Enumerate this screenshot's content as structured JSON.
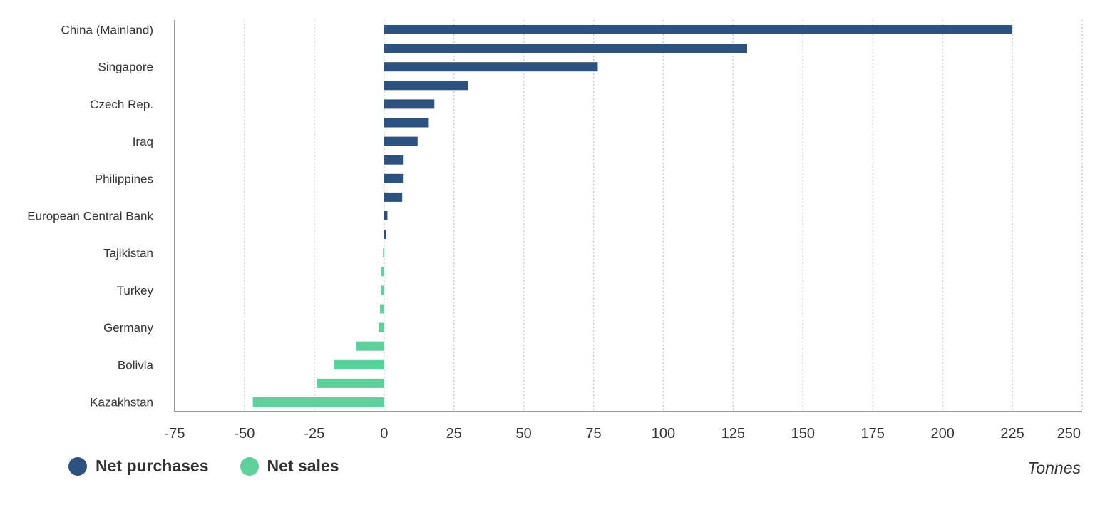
{
  "chart_data": {
    "type": "bar",
    "orientation": "horizontal",
    "unit_label": "Tonnes",
    "xlim": [
      -75,
      250
    ],
    "x_ticks": [
      -75,
      -50,
      -25,
      0,
      25,
      50,
      75,
      100,
      125,
      150,
      175,
      200,
      225,
      250
    ],
    "grid": "vertical dotted",
    "legend_placement": "bottom-left",
    "series": [
      {
        "name": "Net purchases",
        "color": "#2e527f"
      },
      {
        "name": "Net sales",
        "color": "#5fd09b"
      }
    ],
    "categories": [
      {
        "label": "China (Mainland)",
        "value": 225
      },
      {
        "label": "",
        "value": 130
      },
      {
        "label": "Singapore",
        "value": 76.5
      },
      {
        "label": "",
        "value": 30
      },
      {
        "label": "Czech Rep.",
        "value": 18
      },
      {
        "label": "",
        "value": 16
      },
      {
        "label": "Iraq",
        "value": 12
      },
      {
        "label": "",
        "value": 7
      },
      {
        "label": "Philippines",
        "value": 7
      },
      {
        "label": "",
        "value": 6.5
      },
      {
        "label": "European Central Bank",
        "value": 1.2
      },
      {
        "label": "",
        "value": 0.6
      },
      {
        "label": "Tajikistan",
        "value": -0.4
      },
      {
        "label": "",
        "value": -1
      },
      {
        "label": "Turkey",
        "value": -1
      },
      {
        "label": "",
        "value": -1.5
      },
      {
        "label": "Germany",
        "value": -2
      },
      {
        "label": "",
        "value": -10
      },
      {
        "label": "Bolivia",
        "value": -18
      },
      {
        "label": "",
        "value": -24
      },
      {
        "label": "Kazakhstan",
        "value": -47
      }
    ]
  },
  "legend": {
    "purchases_label": "Net purchases",
    "sales_label": "Net sales"
  },
  "colors": {
    "purchases": "#2e527f",
    "sales": "#5fd09b",
    "axis": "#999999",
    "grid": "#c9c9c9",
    "text": "#333333"
  }
}
